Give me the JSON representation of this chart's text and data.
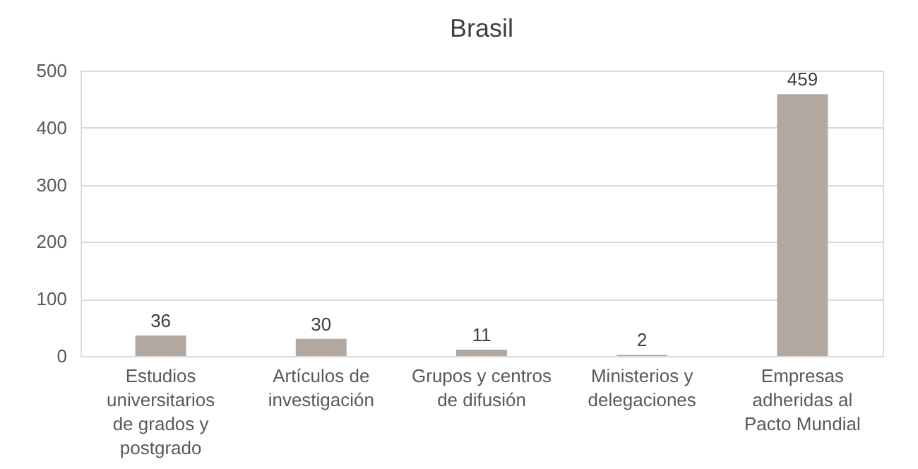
{
  "chart_data": {
    "type": "bar",
    "title": "Brasil",
    "categories": [
      "Estudios universitarios de grados y postgrado",
      "Artículos de investigación",
      "Grupos y centros de difusión",
      "Ministerios y delegaciones",
      "Empresas adheridas al Pacto Mundial"
    ],
    "values": [
      36,
      30,
      11,
      2,
      459
    ],
    "color": "#b3a8a0",
    "ylim": [
      0,
      500
    ],
    "yticks": [
      0,
      100,
      200,
      300,
      400,
      500
    ],
    "grid": "y",
    "data_labels": true
  }
}
